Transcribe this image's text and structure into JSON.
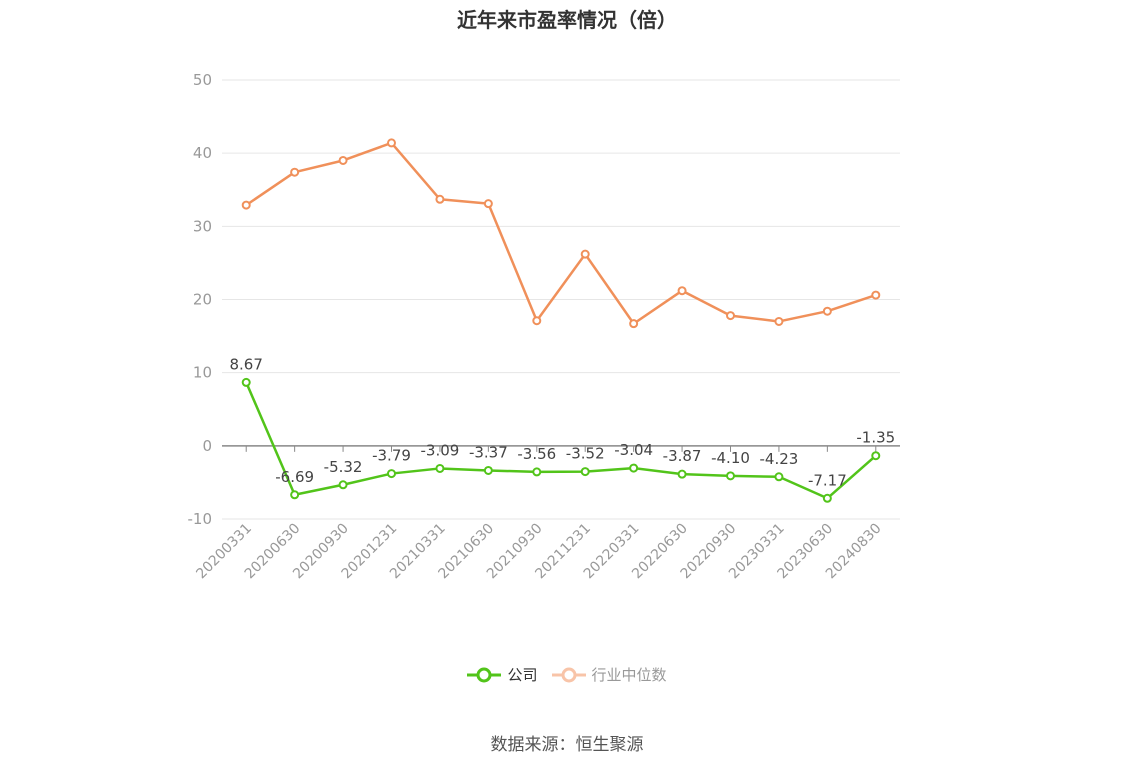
{
  "chart_data": {
    "type": "line",
    "title": "近年来市盈率情况（倍）",
    "categories": [
      "20200331",
      "20200630",
      "20200930",
      "20201231",
      "20210331",
      "20210630",
      "20210930",
      "20211231",
      "20220331",
      "20220630",
      "20220930",
      "20230331",
      "20230630",
      "20240830"
    ],
    "series": [
      {
        "name": "公司",
        "color": "#52c41a",
        "values": [
          8.67,
          -6.69,
          -5.32,
          -3.79,
          -3.09,
          -3.37,
          -3.56,
          -3.52,
          -3.04,
          -3.87,
          -4.1,
          -4.23,
          -7.17,
          -1.35
        ],
        "labels": [
          "8.67",
          "-6.69",
          "-5.32",
          "-3.79",
          "-3.09",
          "-3.37",
          "-3.56",
          "-3.52",
          "-3.04",
          "-3.87",
          "-4.10",
          "-4.23",
          "-7.17",
          "-1.35"
        ]
      },
      {
        "name": "行业中位数",
        "color": "#f0905a",
        "values": [
          32.9,
          37.4,
          39.0,
          41.4,
          33.7,
          33.1,
          17.1,
          26.2,
          16.7,
          21.2,
          17.8,
          17.0,
          18.4,
          20.6
        ]
      }
    ],
    "yticks": [
      "50",
      "40",
      "30",
      "20",
      "10",
      "0",
      "-10"
    ],
    "ylim": [
      -10,
      50
    ],
    "grid": true,
    "legend_position": "bottom"
  },
  "source": "数据来源：恒生聚源"
}
